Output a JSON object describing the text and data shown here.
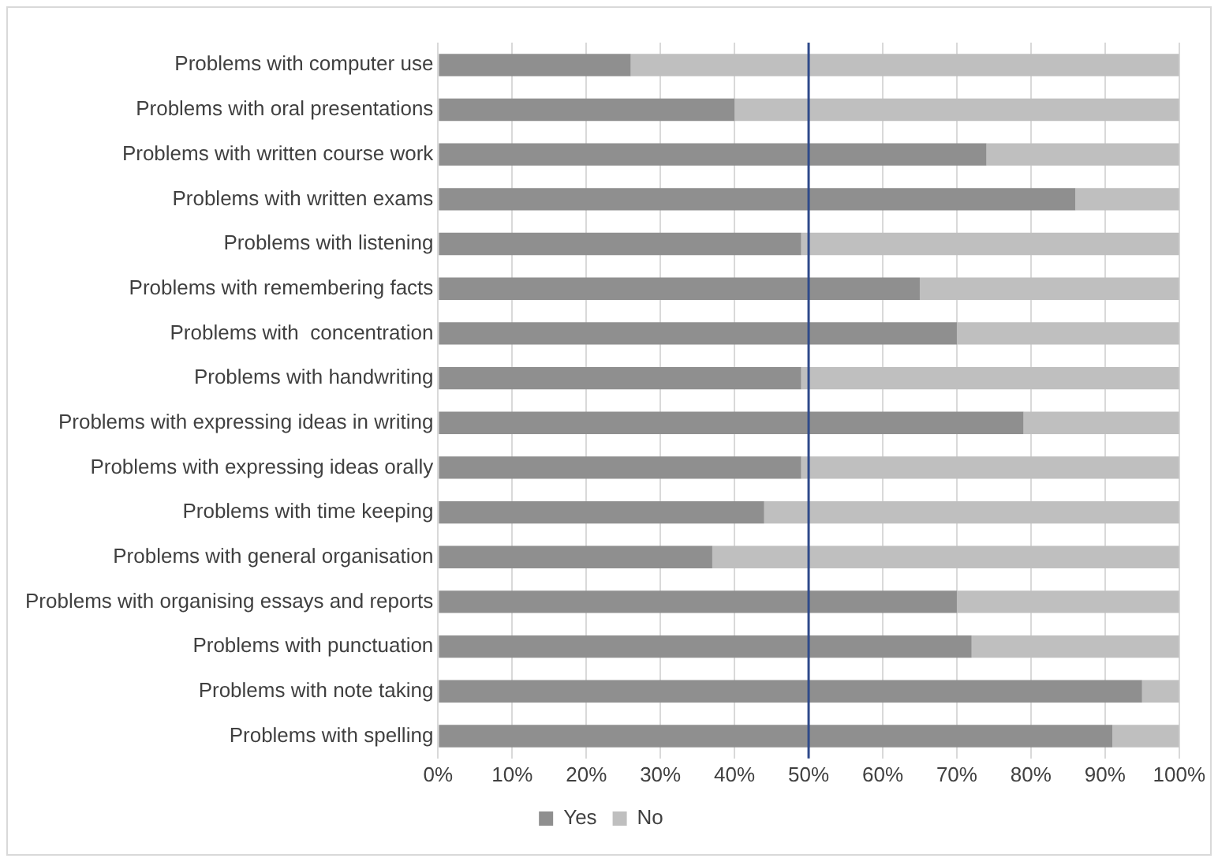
{
  "chart_data": {
    "type": "bar",
    "orientation": "horizontal",
    "stacked": true,
    "categories": [
      "Problems with computer use",
      "Problems with oral presentations",
      "Problems with written course work",
      "Problems with written exams",
      "Problems with listening",
      "Problems with remembering facts",
      "Problems with  concentration",
      "Problems with handwriting",
      "Problems with expressing ideas in writing",
      "Problems with expressing ideas orally",
      "Problems with time keeping",
      "Problems with general organisation",
      "Problems with organising essays and reports",
      "Problems with punctuation",
      "Problems with note taking",
      "Problems with spelling"
    ],
    "series": [
      {
        "name": "Yes",
        "color": "#8f8f8f",
        "values": [
          26,
          40,
          74,
          86,
          49,
          65,
          70,
          49,
          79,
          49,
          44,
          37,
          70,
          72,
          95,
          91
        ]
      },
      {
        "name": "No",
        "color": "#bfbfbf",
        "values": [
          74,
          60,
          26,
          14,
          51,
          35,
          30,
          51,
          21,
          51,
          56,
          63,
          30,
          28,
          5,
          9
        ]
      }
    ],
    "xlim": [
      0,
      100
    ],
    "xticks": [
      {
        "value": 0,
        "label": "0%"
      },
      {
        "value": 10,
        "label": "10%"
      },
      {
        "value": 20,
        "label": "20%"
      },
      {
        "value": 30,
        "label": "30%"
      },
      {
        "value": 40,
        "label": "40%"
      },
      {
        "value": 50,
        "label": "50%"
      },
      {
        "value": 60,
        "label": "60%"
      },
      {
        "value": 70,
        "label": "70%"
      },
      {
        "value": 80,
        "label": "80%"
      },
      {
        "value": 90,
        "label": "90%"
      },
      {
        "value": 100,
        "label": "100%"
      }
    ],
    "grid": "x",
    "legend": "bottom",
    "ref_lines": [
      {
        "axis": "x",
        "value": 50,
        "color": "#2f4a8a"
      }
    ]
  }
}
